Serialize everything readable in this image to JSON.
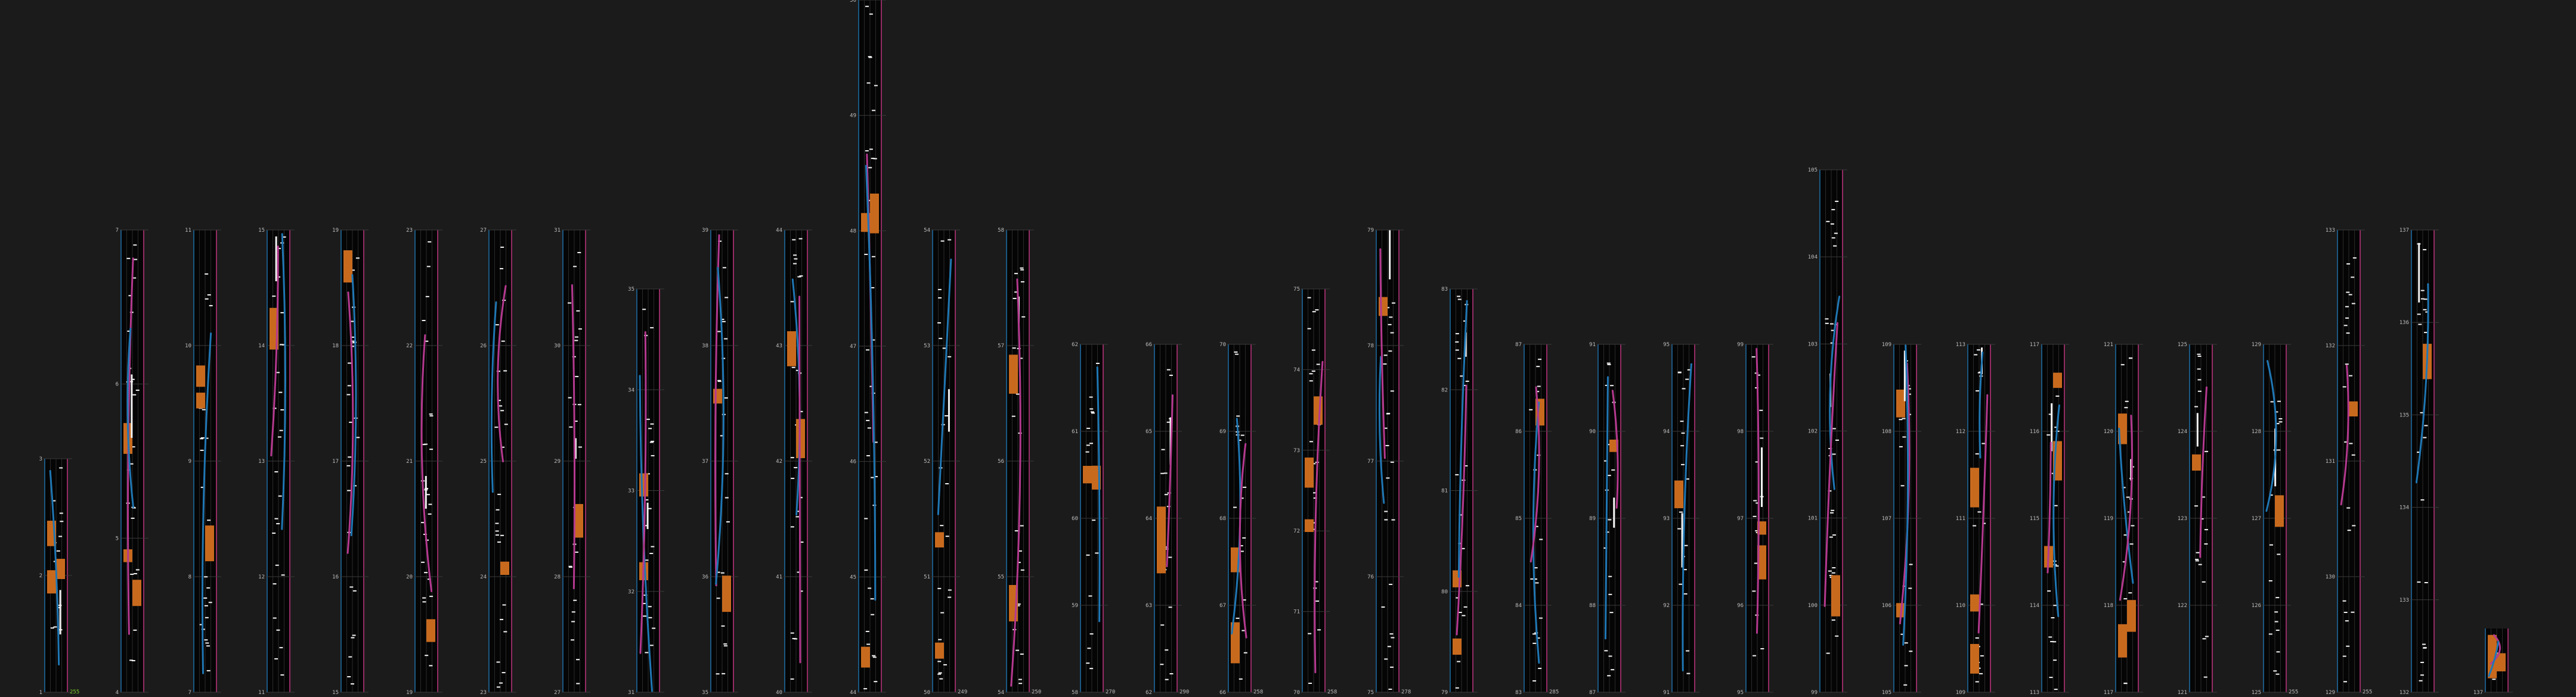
{
  "colors": {
    "background": "#1b1b1b",
    "column": "#050505",
    "grid": "#2a2a2a",
    "frame_blue": "#1e6fa8",
    "frame_pink": "#c0357f",
    "orange": "#c86a1e",
    "white": "#f2f2f2",
    "blue": "#1f77b4",
    "magenta": "#b4398f",
    "label": "#bdbdbd",
    "green": "#7ccf2a"
  },
  "columns": [
    {
      "id": "c1",
      "tick_labels": [
        "1",
        "2",
        "3"
      ],
      "top_label": "",
      "bottom_right": "255"
    },
    {
      "id": "c2",
      "tick_labels": [
        "4",
        "5",
        "6",
        "7"
      ],
      "top_label": "7",
      "bottom_right": ""
    },
    {
      "id": "c3",
      "tick_labels": [
        "7",
        "8",
        "9",
        "10",
        "11"
      ],
      "top_label": "11",
      "bottom_right": ""
    },
    {
      "id": "c4",
      "tick_labels": [
        "11",
        "12",
        "13",
        "14",
        "15"
      ],
      "top_label": "15",
      "bottom_right": ""
    },
    {
      "id": "c5",
      "tick_labels": [
        "15",
        "16",
        "17",
        "18",
        "19"
      ],
      "top_label": "19",
      "bottom_right": ""
    },
    {
      "id": "c6",
      "tick_labels": [
        "19",
        "20",
        "21",
        "22",
        "23"
      ],
      "top_label": "23",
      "bottom_right": ""
    },
    {
      "id": "c7",
      "tick_labels": [
        "23",
        "24",
        "25",
        "26",
        "27"
      ],
      "top_label": "27",
      "bottom_right": ""
    },
    {
      "id": "c8",
      "tick_labels": [
        "27",
        "28",
        "29",
        "30",
        "31"
      ],
      "top_label": "31",
      "bottom_right": ""
    },
    {
      "id": "c9",
      "tick_labels": [
        "31",
        "32",
        "33",
        "34",
        "35"
      ],
      "top_label": "35",
      "bottom_right": ""
    },
    {
      "id": "c10",
      "tick_labels": [
        "35",
        "36",
        "37",
        "38",
        "39"
      ],
      "top_label": "40",
      "bottom_right": ""
    },
    {
      "id": "c11",
      "tick_labels": [
        "40",
        "41",
        "42",
        "43",
        "44"
      ],
      "top_label": "45",
      "bottom_right": ""
    },
    {
      "id": "c12",
      "tick_labels": [
        "44",
        "45",
        "46",
        "47",
        "48",
        "49",
        "50"
      ],
      "top_label": "50",
      "bottom_right": ""
    },
    {
      "id": "c13",
      "tick_labels": [
        "50",
        "51",
        "52",
        "53",
        "54"
      ],
      "top_label": "54",
      "bottom_right": "249"
    },
    {
      "id": "c14",
      "tick_labels": [
        "54",
        "55",
        "56",
        "57",
        "58"
      ],
      "top_label": "58",
      "bottom_right": "250"
    },
    {
      "id": "c15",
      "tick_labels": [
        "58",
        "59",
        "60",
        "61",
        "62"
      ],
      "top_label": "62",
      "bottom_right": "270"
    },
    {
      "id": "c16",
      "tick_labels": [
        "62",
        "63",
        "64",
        "65",
        "66"
      ],
      "top_label": "66",
      "bottom_right": "290"
    },
    {
      "id": "c17",
      "tick_labels": [
        "66",
        "67",
        "68",
        "69",
        "70"
      ],
      "top_label": "70",
      "bottom_right": "258"
    },
    {
      "id": "c18",
      "tick_labels": [
        "70",
        "71",
        "72",
        "73",
        "74",
        "75"
      ],
      "top_label": "75",
      "bottom_right": "258"
    },
    {
      "id": "c19",
      "tick_labels": [
        "75",
        "76",
        "77",
        "78",
        "79"
      ],
      "top_label": "79",
      "bottom_right": "278"
    },
    {
      "id": "c20",
      "tick_labels": [
        "79",
        "80",
        "81",
        "82",
        "83"
      ],
      "top_label": "83",
      "bottom_right": ""
    },
    {
      "id": "c21",
      "tick_labels": [
        "83",
        "84",
        "85",
        "86",
        "87"
      ],
      "top_label": "87",
      "bottom_right": "285"
    },
    {
      "id": "c22",
      "tick_labels": [
        "87",
        "88",
        "89",
        "90",
        "91"
      ],
      "top_label": "91",
      "bottom_right": ""
    },
    {
      "id": "c23",
      "tick_labels": [
        "91",
        "92",
        "93",
        "94",
        "95"
      ],
      "top_label": "95",
      "bottom_right": ""
    },
    {
      "id": "c24",
      "tick_labels": [
        "95",
        "96",
        "97",
        "98",
        "99"
      ],
      "top_label": "99",
      "bottom_right": ""
    },
    {
      "id": "c25",
      "tick_labels": [
        "99",
        "100",
        "101",
        "102",
        "103",
        "104",
        "105"
      ],
      "top_label": "105",
      "bottom_right": ""
    },
    {
      "id": "c26",
      "tick_labels": [
        "105",
        "106",
        "107",
        "108",
        "109"
      ],
      "top_label": "109",
      "bottom_right": ""
    },
    {
      "id": "c27",
      "tick_labels": [
        "109",
        "110",
        "111",
        "112",
        "113"
      ],
      "top_label": "113",
      "bottom_right": ""
    },
    {
      "id": "c28",
      "tick_labels": [
        "113",
        "114",
        "115",
        "116",
        "117"
      ],
      "top_label": "117",
      "bottom_right": ""
    },
    {
      "id": "c29",
      "tick_labels": [
        "117",
        "118",
        "119",
        "120",
        "121"
      ],
      "top_label": "121",
      "bottom_right": ""
    },
    {
      "id": "c30",
      "tick_labels": [
        "121",
        "122",
        "123",
        "124",
        "125"
      ],
      "top_label": "125",
      "bottom_right": ""
    },
    {
      "id": "c31",
      "tick_labels": [
        "125",
        "126",
        "127",
        "128",
        "129"
      ],
      "top_label": "129",
      "bottom_right": "255"
    },
    {
      "id": "c32",
      "tick_labels": [
        "129",
        "130",
        "131",
        "132",
        "133"
      ],
      "top_label": "133",
      "bottom_right": "255"
    },
    {
      "id": "c33",
      "tick_labels": [
        "132",
        "133",
        "134",
        "135",
        "136",
        "137"
      ],
      "top_label": "137",
      "bottom_right": ""
    },
    {
      "id": "c34",
      "tick_labels": [
        "137"
      ],
      "top_label": "",
      "bottom_right": ""
    }
  ]
}
